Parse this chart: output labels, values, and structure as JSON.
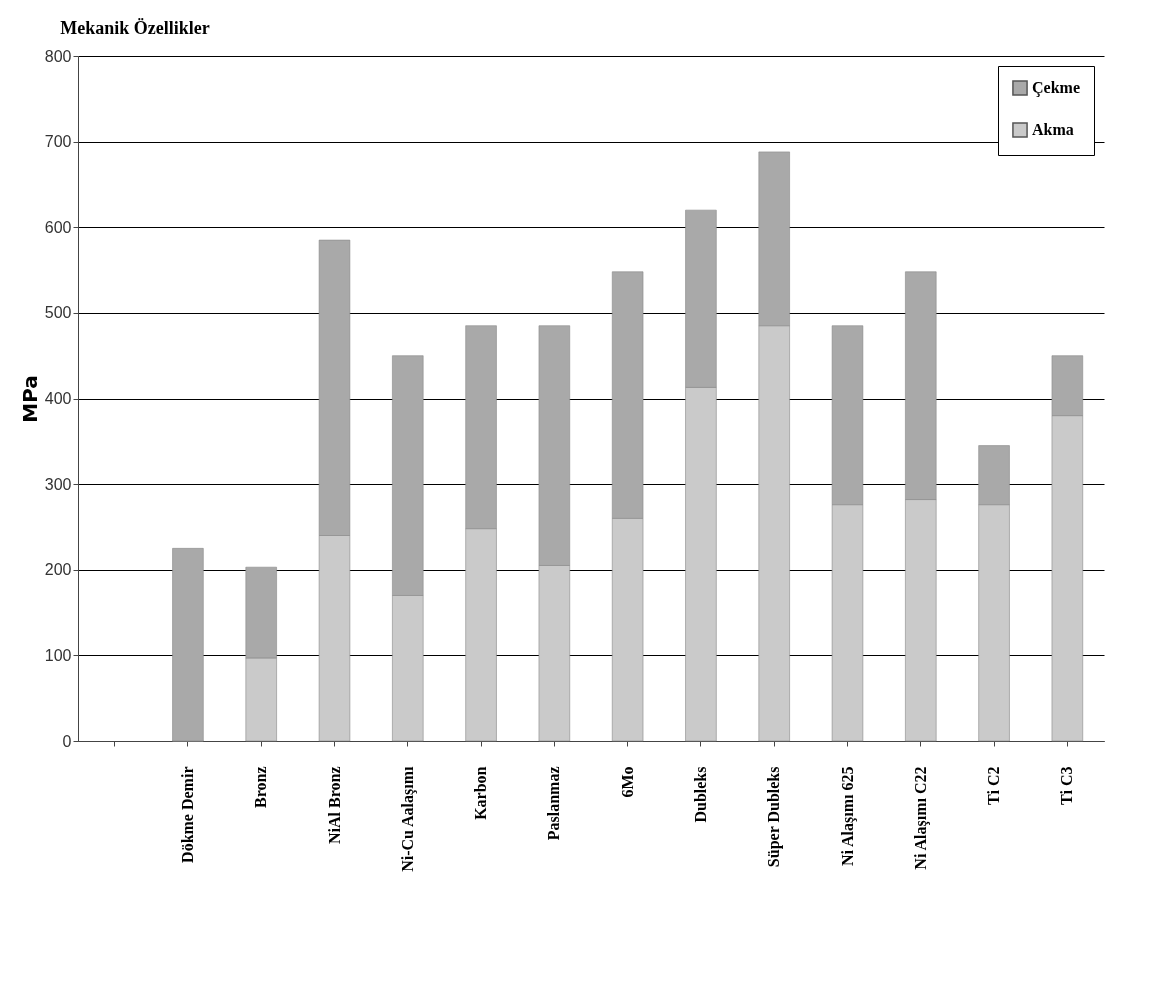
{
  "chart_data": {
    "type": "bar",
    "title": "Mekanik Özellikler",
    "ylabel": "MPa",
    "categories": [
      null,
      "Dökme Demir",
      "Bronz",
      "NiAl Bronz",
      "Ni-Cu Aalaşımı",
      "Karbon",
      "Paslanmaz",
      "6Mo",
      "Dubleks",
      "Süper Dubleks",
      "Ni Alaşımı 625",
      "Ni Alaşımı C22",
      "Ti C2",
      "Ti C3"
    ],
    "stacked": true,
    "series": [
      {
        "name": "Akma",
        "color": "#cacaca",
        "values": [
          null,
          0,
          97,
          240,
          170,
          248,
          205,
          260,
          413,
          485,
          276,
          282,
          276,
          380
        ]
      },
      {
        "name": "Çekme",
        "color": "#a9a9a9",
        "values": [
          null,
          225,
          106,
          345,
          280,
          237,
          280,
          288,
          207,
          203,
          209,
          266,
          69,
          70
        ]
      }
    ],
    "ylim": [
      0,
      800
    ],
    "yticks": [
      0,
      100,
      200,
      300,
      400,
      500,
      600,
      700,
      800
    ],
    "grid": "y",
    "legend": "top right"
  }
}
